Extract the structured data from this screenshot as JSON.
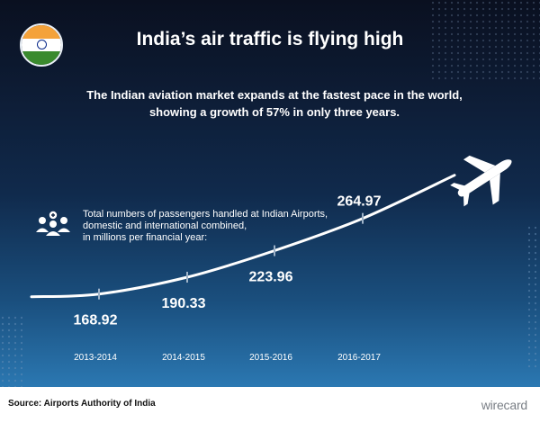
{
  "header": {
    "title": "India’s air traffic is flying high",
    "subtitle_lines": [
      "The Indian aviation market expands at the fastest pace in the world,",
      "showing a growth of 57% in only three years."
    ]
  },
  "description_lines": [
    "Total numbers of passengers handled at Indian Airports,",
    "domestic and international combined,",
    "in millions per financial year:"
  ],
  "colors": {
    "flag_saffron": "#f4a23a",
    "flag_white": "#ffffff",
    "flag_green": "#3a8a2e",
    "flag_wheel": "#0a2a8a",
    "curve": "#ffffff",
    "tick": "#9fb3c8"
  },
  "icons": {
    "flag": "india-flag-icon",
    "people": "people-group-icon",
    "plane": "airplane-icon"
  },
  "chart_data": {
    "type": "line",
    "categories": [
      "2013-2014",
      "2014-2015",
      "2015-2016",
      "2016-2017"
    ],
    "values": [
      168.92,
      190.33,
      223.96,
      264.97
    ],
    "value_labels": [
      "168.92",
      "190.33",
      "223.96",
      "264.97"
    ],
    "ylabel": "",
    "xlabel": "",
    "grid": false,
    "legend": "none"
  },
  "footer": {
    "source": "Source: Airports Authority of India",
    "brand": "wirecard"
  }
}
